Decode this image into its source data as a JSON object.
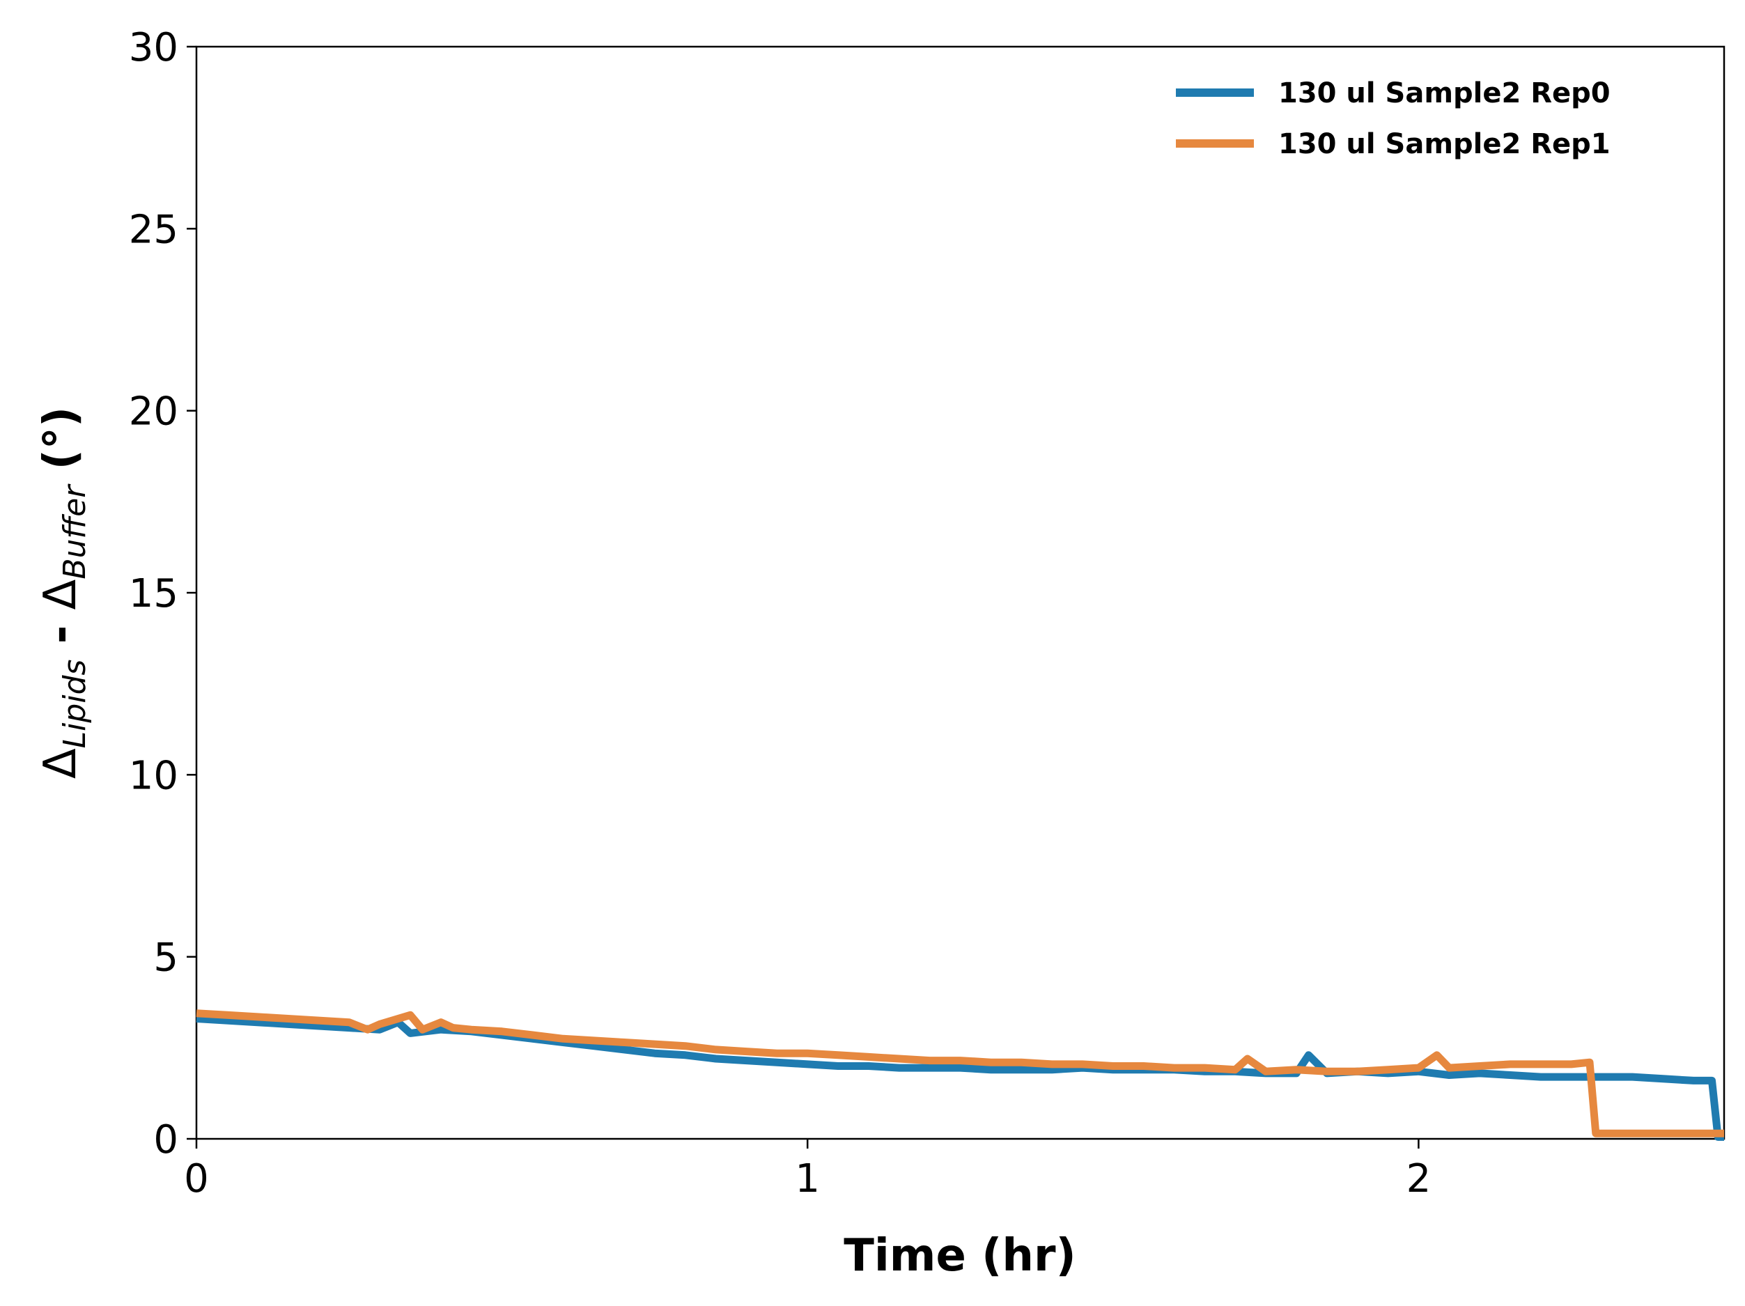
{
  "chart_data": {
    "type": "line",
    "title": "",
    "xlabel": "Time (hr)",
    "ylabel": {
      "delta": "Δ",
      "sub1": "Lipids",
      "mid": " - ",
      "sub2": "Buffer",
      "unit": " (°)"
    },
    "xlim": [
      0,
      2.5
    ],
    "ylim": [
      0,
      30
    ],
    "xticks": [
      0,
      1,
      2
    ],
    "yticks": [
      0,
      5,
      10,
      15,
      20,
      25,
      30
    ],
    "grid": false,
    "legend_position": "top-right",
    "series": [
      {
        "name": "130 ul Sample2 Rep0",
        "color": "#1f7bb0",
        "x": [
          0,
          0.05,
          0.1,
          0.15,
          0.2,
          0.25,
          0.3,
          0.33,
          0.35,
          0.4,
          0.45,
          0.5,
          0.55,
          0.6,
          0.65,
          0.7,
          0.75,
          0.8,
          0.85,
          0.9,
          0.95,
          1.0,
          1.05,
          1.1,
          1.15,
          1.2,
          1.25,
          1.3,
          1.35,
          1.4,
          1.45,
          1.5,
          1.55,
          1.6,
          1.65,
          1.7,
          1.75,
          1.8,
          1.82,
          1.85,
          1.9,
          1.95,
          2.0,
          2.05,
          2.1,
          2.15,
          2.2,
          2.25,
          2.3,
          2.35,
          2.4,
          2.45,
          2.48,
          2.49,
          2.5
        ],
        "y": [
          3.3,
          3.25,
          3.2,
          3.15,
          3.1,
          3.05,
          3.0,
          3.2,
          2.9,
          3.0,
          2.95,
          2.85,
          2.75,
          2.65,
          2.55,
          2.45,
          2.35,
          2.3,
          2.2,
          2.15,
          2.1,
          2.05,
          2.0,
          2.0,
          1.95,
          1.95,
          1.95,
          1.9,
          1.9,
          1.9,
          1.95,
          1.9,
          1.9,
          1.9,
          1.85,
          1.85,
          1.8,
          1.8,
          2.3,
          1.8,
          1.85,
          1.8,
          1.85,
          1.75,
          1.8,
          1.75,
          1.7,
          1.7,
          1.7,
          1.7,
          1.65,
          1.6,
          1.6,
          0.05,
          0.05
        ]
      },
      {
        "name": "130 ul Sample2 Rep1",
        "color": "#e6883f",
        "x": [
          0,
          0.05,
          0.1,
          0.15,
          0.2,
          0.25,
          0.28,
          0.3,
          0.35,
          0.37,
          0.4,
          0.42,
          0.45,
          0.5,
          0.55,
          0.6,
          0.65,
          0.7,
          0.75,
          0.8,
          0.85,
          0.9,
          0.95,
          1.0,
          1.05,
          1.1,
          1.15,
          1.2,
          1.25,
          1.3,
          1.35,
          1.4,
          1.45,
          1.5,
          1.55,
          1.6,
          1.65,
          1.7,
          1.72,
          1.75,
          1.8,
          1.85,
          1.9,
          1.95,
          2.0,
          2.03,
          2.05,
          2.1,
          2.15,
          2.2,
          2.25,
          2.28,
          2.29,
          2.35,
          2.4,
          2.45,
          2.5
        ],
        "y": [
          3.45,
          3.4,
          3.35,
          3.3,
          3.25,
          3.2,
          3.0,
          3.15,
          3.4,
          3.0,
          3.2,
          3.05,
          3.0,
          2.95,
          2.85,
          2.75,
          2.7,
          2.65,
          2.6,
          2.55,
          2.45,
          2.4,
          2.35,
          2.35,
          2.3,
          2.25,
          2.2,
          2.15,
          2.15,
          2.1,
          2.1,
          2.05,
          2.05,
          2.0,
          2.0,
          1.95,
          1.95,
          1.9,
          2.2,
          1.85,
          1.9,
          1.85,
          1.85,
          1.9,
          1.95,
          2.3,
          1.95,
          2.0,
          2.05,
          2.05,
          2.05,
          2.1,
          0.15,
          0.15,
          0.15,
          0.15,
          0.15
        ]
      }
    ]
  }
}
